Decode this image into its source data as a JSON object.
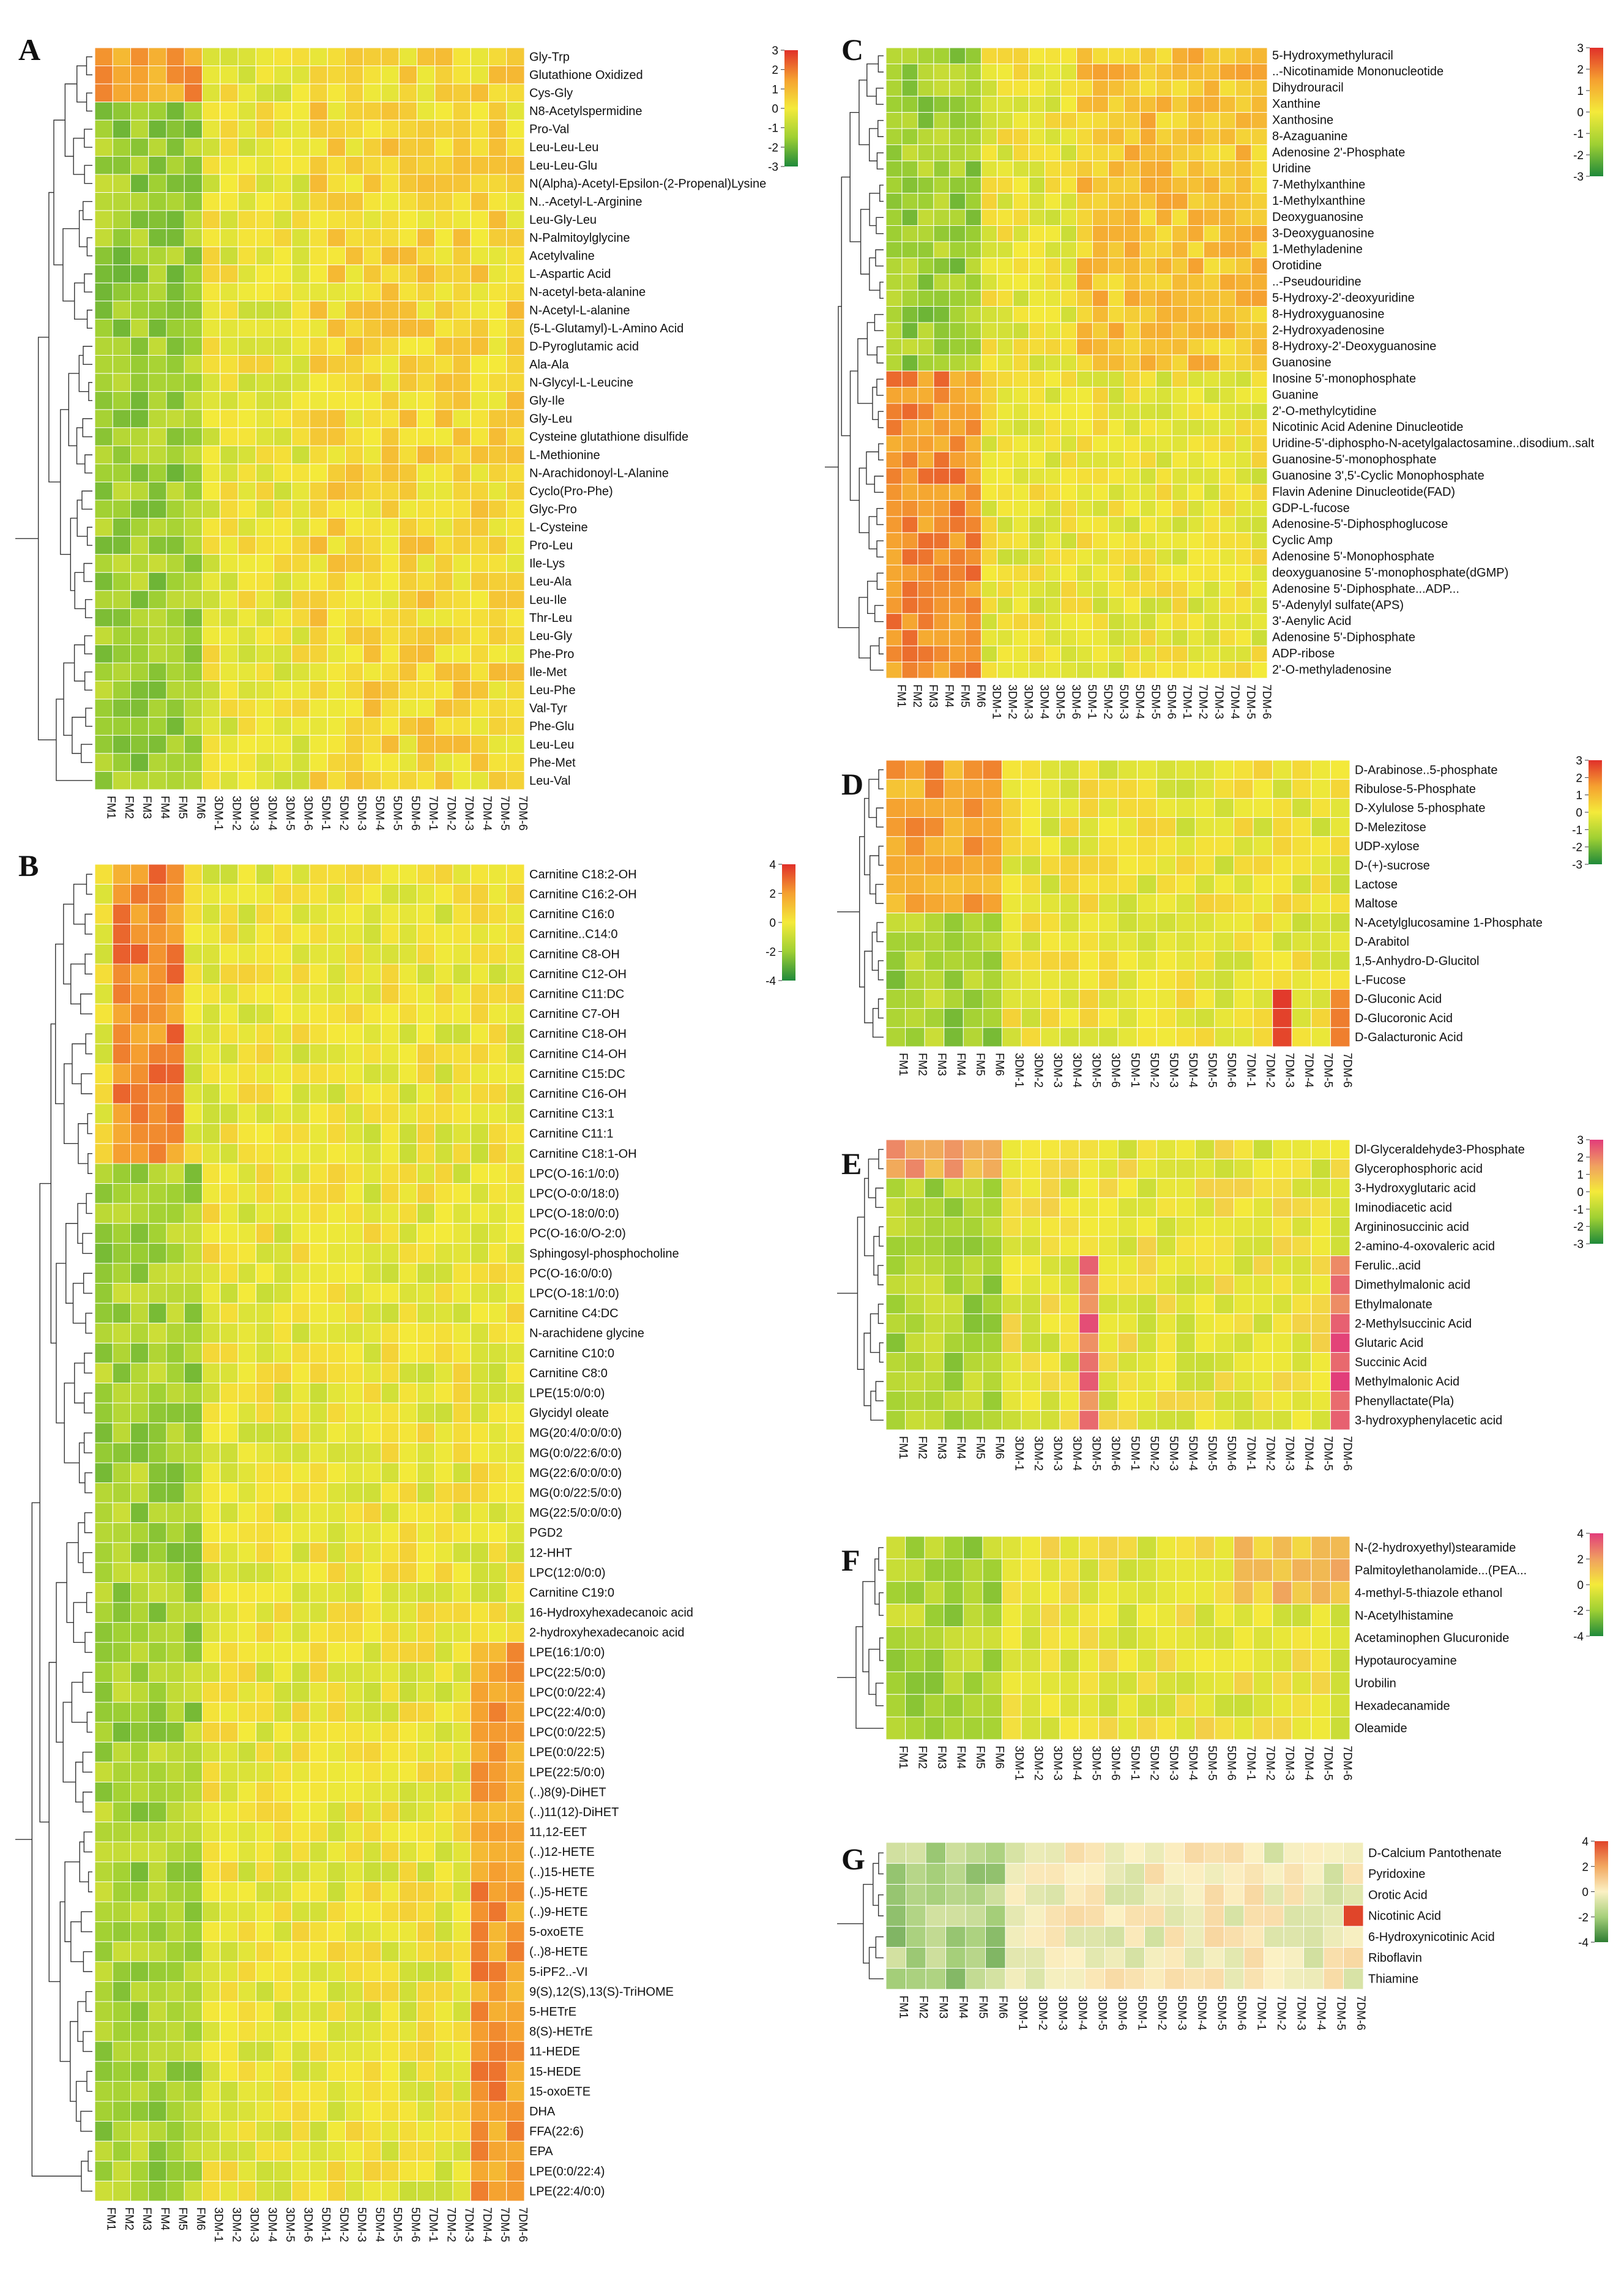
{
  "colors": {
    "low": "#1f8a3a",
    "lowmid": "#9fd033",
    "mid": "#f4ea3a",
    "highmid": "#f5a030",
    "high": "#e0302a",
    "high_pink": "#e23c7a",
    "cell_border": "#ffffff"
  },
  "common_columns": [
    "FM1",
    "FM2",
    "FM3",
    "FM4",
    "FM5",
    "FM6",
    "3DM-1",
    "3DM-2",
    "3DM-3",
    "3DM-4",
    "3DM-5",
    "3DM-6",
    "5DM-1",
    "5DM-2",
    "5DM-3",
    "5DM-4",
    "5DM-5",
    "5DM-6",
    "7DM-1",
    "7DM-2",
    "7DM-3",
    "7DM-4",
    "7DM-5",
    "7DM-6"
  ],
  "chart_data": [
    {
      "type": "heatmap",
      "panel": "A",
      "legend_ticks": [
        "3",
        "2",
        "1",
        "0",
        "-1",
        "-2",
        "-3"
      ],
      "color_range": [
        -3,
        3
      ],
      "palette": "green-yellow-red",
      "columns": [
        "FM1",
        "FM2",
        "FM3",
        "FM4",
        "FM5",
        "FM6",
        "3DM-1",
        "3DM-2",
        "3DM-3",
        "3DM-4",
        "3DM-5",
        "3DM-6",
        "5DM-1",
        "5DM-2",
        "5DM-3",
        "5DM-4",
        "5DM-5",
        "5DM-6",
        "7DM-1",
        "7DM-2",
        "7DM-3",
        "7DM-4",
        "7DM-5",
        "7DM-6"
      ],
      "rows": [
        "Gly-Trp",
        "Glutathione Oxidized",
        "Cys-Gly",
        "N8-Acetylspermidine",
        "Pro-Val",
        "Leu-Leu-Leu",
        "Leu-Leu-Glu",
        "N(Alpha)-Acetyl-Epsilon-(2-Propenal)Lysine",
        "N..-Acetyl-L-Arginine",
        "Leu-Gly-Leu",
        "N-Palmitoylglycine",
        "Acetylvaline",
        "L-Aspartic Acid",
        "N-acetyl-beta-alanine",
        "N-Acetyl-L-alanine",
        "(5-L-Glutamyl)-L-Amino Acid",
        "D-Pyroglutamic acid",
        "Ala-Ala",
        "N-Glycyl-L-Leucine",
        "Gly-Ile",
        "Gly-Leu",
        "Cysteine glutathione disulfide",
        "L-Methionine",
        "N-Arachidonoyl-L-Alanine",
        "Cyclo(Pro-Phe)",
        "Glyc-Pro",
        "L-Cysteine",
        "Pro-Leu",
        "Ile-Lys",
        "Leu-Ala",
        "Leu-Ile",
        "Thr-Leu",
        "Leu-Gly",
        "Phe-Pro",
        "Ile-Met",
        "Leu-Phe",
        "Val-Tyr",
        "Phe-Glu",
        "Leu-Leu",
        "Phe-Met",
        "Leu-Val"
      ]
    },
    {
      "type": "heatmap",
      "panel": "B",
      "legend_ticks": [
        "4",
        "2",
        "0",
        "-2",
        "-4"
      ],
      "color_range": [
        -4,
        4
      ],
      "palette": "green-yellow-red",
      "columns": [
        "FM1",
        "FM2",
        "FM3",
        "FM4",
        "FM5",
        "FM6",
        "3DM-1",
        "3DM-2",
        "3DM-3",
        "3DM-4",
        "3DM-5",
        "3DM-6",
        "5DM-1",
        "5DM-2",
        "5DM-3",
        "5DM-4",
        "5DM-5",
        "5DM-6",
        "7DM-1",
        "7DM-2",
        "7DM-3",
        "7DM-4",
        "7DM-5",
        "7DM-6"
      ],
      "rows": [
        "Carnitine C18:2-OH",
        "Carnitine C16:2-OH",
        "Carnitine C16:0",
        "Carnitine..C14:0",
        "Carnitine C8-OH",
        "Carnitine C12-OH",
        "Carnitine C11:DC",
        "Carnitine C7-OH",
        "Carnitine C18-OH",
        "Carnitine C14-OH",
        "Carnitine C15:DC",
        "Carnitine C16-OH",
        "Carnitine C13:1",
        "Carnitine C11:1",
        "Carnitine C18:1-OH",
        "LPC(O-16:1/0:0)",
        "LPC(O-0:0/18:0)",
        "LPC(O-18:0/0:0)",
        "PC(O-16:0/O-2:0)",
        "Sphingosyl-phosphocholine",
        "PC(O-16:0/0:0)",
        "LPC(O-18:1/0:0)",
        "Carnitine C4:DC",
        "N-arachidene glycine",
        "Carnitine C10:0",
        "Carnitine C8:0",
        "LPE(15:0/0:0)",
        "Glycidyl oleate",
        "MG(20:4/0:0/0:0)",
        "MG(0:0/22:6/0:0)",
        "MG(22:6/0:0/0:0)",
        "MG(0:0/22:5/0:0)",
        "MG(22:5/0:0/0:0)",
        "PGD2",
        "12-HHT",
        "LPC(12:0/0:0)",
        "Carnitine C19:0",
        "16-Hydroxyhexadecanoic acid",
        "2-hydroxyhexadecanoic acid",
        "LPE(16:1/0:0)",
        "LPC(22:5/0:0)",
        "LPC(0:0/22:4)",
        "LPC(22:4/0:0)",
        "LPC(0:0/22:5)",
        "LPE(0:0/22:5)",
        "LPE(22:5/0:0)",
        "(..)8(9)-DiHET",
        "(..)11(12)-DiHET",
        "11,12-EET",
        "(..)12-HETE",
        "(..)15-HETE",
        "(..)5-HETE",
        "(..)9-HETE",
        "5-oxoETE",
        "(..)8-HETE",
        "5-iPF2..-VI",
        "9(S),12(S),13(S)-TriHOME",
        "5-HETrE",
        "8(S)-HETrE",
        "11-HEDE",
        "15-HEDE",
        "15-oxoETE",
        "DHA",
        "FFA(22:6)",
        "EPA",
        "LPE(0:0/22:4)",
        "LPE(22:4/0:0)"
      ]
    },
    {
      "type": "heatmap",
      "panel": "C",
      "legend_ticks": [
        "3",
        "2",
        "1",
        "0",
        "-1",
        "-2",
        "-3"
      ],
      "color_range": [
        -3,
        3
      ],
      "palette": "green-yellow-red",
      "columns": [
        "FM1",
        "FM2",
        "FM3",
        "FM4",
        "FM5",
        "FM6",
        "3DM-1",
        "3DM-2",
        "3DM-3",
        "3DM-4",
        "3DM-5",
        "3DM-6",
        "5DM-1",
        "5DM-2",
        "5DM-3",
        "5DM-4",
        "5DM-5",
        "5DM-6",
        "7DM-1",
        "7DM-2",
        "7DM-3",
        "7DM-4",
        "7DM-5",
        "7DM-6"
      ],
      "rows": [
        "5-Hydroxymethyluracil",
        "..-Nicotinamide Mononucleotide",
        "Dihydrouracil",
        "Xanthine",
        "Xanthosine",
        "8-Azaguanine",
        "Adenosine 2'-Phosphate",
        "Uridine",
        "7-Methylxanthine",
        "1-Methylxanthine",
        "Deoxyguanosine",
        "3-Deoxyguanosine",
        "1-Methyladenine",
        "Orotidine",
        "..-Pseudouridine",
        "5-Hydroxy-2'-deoxyuridine",
        "8-Hydroxyguanosine",
        "2-Hydroxyadenosine",
        "8-Hydroxy-2'-Deoxyguanosine",
        "Guanosine",
        "Inosine 5'-monophosphate",
        "Guanine",
        "2'-O-methylcytidine",
        "Nicotinic Acid Adenine Dinucleotide",
        "Uridine-5'-diphospho-N-acetylgalactosamine..disodium..salt",
        "Guanosine-5'-monophosphate",
        "Guanosine 3',5'-Cyclic Monophosphate",
        "Flavin Adenine Dinucleotide(FAD)",
        "GDP-L-fucose",
        "Adenosine-5'-Diphosphoglucose",
        "Cyclic Amp",
        "Adenosine 5'-Monophosphate",
        "deoxyguanosine 5'-monophosphate(dGMP)",
        "Adenosine 5'-Diphosphate...ADP...",
        "5'-Adenylyl sulfate(APS)",
        "3'-Aenylic Acid",
        "Adenosine 5'-Diphosphate",
        "ADP-ribose",
        "2'-O-methyladenosine"
      ]
    },
    {
      "type": "heatmap",
      "panel": "D",
      "legend_ticks": [
        "3",
        "2",
        "1",
        "0",
        "-1",
        "-2",
        "-3"
      ],
      "color_range": [
        -3,
        3
      ],
      "palette": "green-yellow-red",
      "columns": [
        "FM1",
        "FM2",
        "FM3",
        "FM4",
        "FM5",
        "FM6",
        "3DM-1",
        "3DM-2",
        "3DM-3",
        "3DM-4",
        "3DM-5",
        "3DM-6",
        "5DM-1",
        "5DM-2",
        "5DM-3",
        "5DM-4",
        "5DM-5",
        "5DM-6",
        "7DM-1",
        "7DM-2",
        "7DM-3",
        "7DM-4",
        "7DM-5",
        "7DM-6"
      ],
      "rows": [
        "D-Arabinose..5-phosphate",
        "Ribulose-5-Phosphate",
        "D-Xylulose 5-phosphate",
        "D-Melezitose",
        "UDP-xylose",
        "D-(+)-sucrose",
        "Lactose",
        "Maltose",
        "N-Acetylglucosamine 1-Phosphate",
        "D-Arabitol",
        "1,5-Anhydro-D-Glucitol",
        "L-Fucose",
        "D-Gluconic Acid",
        "D-Glucoronic Acid",
        "D-Galacturonic Acid"
      ]
    },
    {
      "type": "heatmap",
      "panel": "E",
      "legend_ticks": [
        "3",
        "2",
        "1",
        "0",
        "-1",
        "-2",
        "-3"
      ],
      "color_range": [
        -3,
        3
      ],
      "palette": "green-yellow-pink",
      "columns": [
        "FM1",
        "FM2",
        "FM3",
        "FM4",
        "FM5",
        "FM6",
        "3DM-1",
        "3DM-2",
        "3DM-3",
        "3DM-4",
        "3DM-5",
        "3DM-6",
        "5DM-1",
        "5DM-2",
        "5DM-3",
        "5DM-4",
        "5DM-5",
        "5DM-6",
        "7DM-1",
        "7DM-2",
        "7DM-3",
        "7DM-4",
        "7DM-5",
        "7DM-6"
      ],
      "rows": [
        "Dl-Glyceraldehyde3-Phosphate",
        "Glycerophosphoric acid",
        "3-Hydroxyglutaric acid",
        "Iminodiacetic acid",
        "Argininosuccinic acid",
        "2-amino-4-oxovaleric acid",
        "Ferulic..acid",
        "Dimethylmalonic acid",
        "Ethylmalonate",
        "2-Methylsuccinic Acid",
        "Glutaric Acid",
        "Succinic Acid",
        "Methylmalonic Acid",
        "Phenyllactate(Pla)",
        "3-hydroxyphenylacetic acid"
      ]
    },
    {
      "type": "heatmap",
      "panel": "F",
      "legend_ticks": [
        "4",
        "2",
        "0",
        "-2",
        "-4"
      ],
      "color_range": [
        -4,
        4
      ],
      "palette": "green-yellow-pink",
      "columns": [
        "FM1",
        "FM2",
        "FM3",
        "FM4",
        "FM5",
        "FM6",
        "3DM-1",
        "3DM-2",
        "3DM-3",
        "3DM-4",
        "3DM-5",
        "3DM-6",
        "5DM-1",
        "5DM-2",
        "5DM-3",
        "5DM-4",
        "5DM-5",
        "5DM-6",
        "7DM-1",
        "7DM-2",
        "7DM-3",
        "7DM-4",
        "7DM-5",
        "7DM-6"
      ],
      "rows": [
        "N-(2-hydroxyethyl)stearamide",
        "Palmitoylethanolamide...(PEA...",
        "4-methyl-5-thiazole ethanol",
        "N-Acetylhistamine",
        "Acetaminophen Glucuronide",
        "Hypotaurocyamine",
        "Urobilin",
        "Hexadecanamide",
        "Oleamide"
      ]
    },
    {
      "type": "heatmap",
      "panel": "G",
      "legend_ticks": [
        "4",
        "2",
        "0",
        "-2",
        "-4"
      ],
      "color_range": [
        -4,
        4
      ],
      "palette": "darkgreen-cream-red",
      "columns": [
        "FM1",
        "FM2",
        "FM3",
        "FM4",
        "FM5",
        "FM6",
        "3DM-1",
        "3DM-2",
        "3DM-3",
        "3DM-4",
        "3DM-5",
        "3DM-6",
        "5DM-1",
        "5DM-2",
        "5DM-3",
        "5DM-4",
        "5DM-5",
        "5DM-6",
        "7DM-1",
        "7DM-2",
        "7DM-3",
        "7DM-4",
        "7DM-5",
        "7DM-6"
      ],
      "rows": [
        "D-Calcium Pantothenate",
        "Pyridoxine",
        "Orotic Acid",
        "Nicotinic Acid",
        "6-Hydroxynicotinic Acid",
        "Riboflavin",
        "Thiamine"
      ]
    }
  ]
}
